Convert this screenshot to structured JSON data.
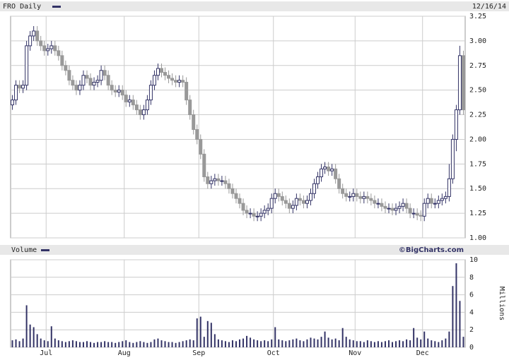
{
  "chart_data": [
    {
      "type": "candlestick",
      "title": "FRO Daily",
      "date": "12/16/14",
      "up_color": "#ffffff",
      "down_color": "#999999",
      "outline_color": "#333366",
      "open": [
        2.35,
        2.4,
        2.55,
        2.52,
        2.55,
        2.95,
        3.05,
        3.1,
        3.0,
        2.95,
        2.9,
        2.92,
        2.95,
        2.9,
        2.85,
        2.75,
        2.7,
        2.6,
        2.55,
        2.5,
        2.55,
        2.65,
        2.62,
        2.55,
        2.58,
        2.6,
        2.7,
        2.65,
        2.55,
        2.5,
        2.48,
        2.5,
        2.45,
        2.38,
        2.4,
        2.35,
        2.3,
        2.25,
        2.3,
        2.4,
        2.55,
        2.65,
        2.72,
        2.68,
        2.65,
        2.62,
        2.6,
        2.58,
        2.6,
        2.58,
        2.4,
        2.25,
        2.1,
        2.0,
        1.85,
        1.62,
        1.55,
        1.58,
        1.6,
        1.58,
        1.58,
        1.55,
        1.5,
        1.45,
        1.4,
        1.35,
        1.28,
        1.25,
        1.25,
        1.22,
        1.22,
        1.25,
        1.28,
        1.3,
        1.4,
        1.45,
        1.42,
        1.38,
        1.35,
        1.3,
        1.33,
        1.4,
        1.38,
        1.35,
        1.38,
        1.45,
        1.55,
        1.62,
        1.7,
        1.72,
        1.68,
        1.7,
        1.6,
        1.5,
        1.45,
        1.42,
        1.42,
        1.45,
        1.42,
        1.4,
        1.42,
        1.4,
        1.38,
        1.35,
        1.35,
        1.32,
        1.3,
        1.3,
        1.28,
        1.3,
        1.32,
        1.35,
        1.3,
        1.25,
        1.25,
        1.23,
        1.22,
        1.35,
        1.4,
        1.35,
        1.35,
        1.38,
        1.4,
        1.42,
        1.6,
        2.0,
        2.3,
        2.85
      ],
      "high": [
        2.45,
        2.6,
        2.6,
        2.6,
        3.0,
        3.1,
        3.15,
        3.15,
        3.05,
        3.0,
        2.97,
        3.0,
        3.0,
        2.95,
        2.9,
        2.8,
        2.75,
        2.65,
        2.6,
        2.6,
        2.7,
        2.7,
        2.67,
        2.63,
        2.65,
        2.75,
        2.75,
        2.7,
        2.6,
        2.55,
        2.55,
        2.55,
        2.5,
        2.45,
        2.45,
        2.4,
        2.35,
        2.35,
        2.45,
        2.6,
        2.7,
        2.77,
        2.77,
        2.73,
        2.7,
        2.67,
        2.65,
        2.65,
        2.65,
        2.63,
        2.45,
        2.3,
        2.15,
        2.05,
        1.9,
        1.67,
        1.63,
        1.65,
        1.65,
        1.63,
        1.63,
        1.6,
        1.55,
        1.5,
        1.45,
        1.4,
        1.33,
        1.3,
        1.3,
        1.27,
        1.3,
        1.33,
        1.35,
        1.45,
        1.5,
        1.5,
        1.47,
        1.43,
        1.4,
        1.38,
        1.45,
        1.45,
        1.43,
        1.43,
        1.5,
        1.6,
        1.67,
        1.75,
        1.77,
        1.77,
        1.75,
        1.75,
        1.65,
        1.55,
        1.5,
        1.47,
        1.5,
        1.5,
        1.47,
        1.47,
        1.47,
        1.45,
        1.43,
        1.4,
        1.4,
        1.37,
        1.35,
        1.35,
        1.35,
        1.37,
        1.4,
        1.4,
        1.35,
        1.3,
        1.3,
        1.28,
        1.4,
        1.45,
        1.45,
        1.4,
        1.43,
        1.45,
        1.47,
        1.75,
        2.05,
        2.35,
        2.95,
        2.9
      ],
      "low": [
        2.3,
        2.35,
        2.47,
        2.47,
        2.5,
        2.9,
        3.0,
        2.95,
        2.9,
        2.85,
        2.85,
        2.87,
        2.85,
        2.8,
        2.7,
        2.65,
        2.55,
        2.5,
        2.45,
        2.45,
        2.5,
        2.57,
        2.5,
        2.5,
        2.53,
        2.55,
        2.6,
        2.5,
        2.45,
        2.43,
        2.43,
        2.4,
        2.33,
        2.33,
        2.3,
        2.25,
        2.2,
        2.2,
        2.25,
        2.35,
        2.5,
        2.6,
        2.63,
        2.6,
        2.57,
        2.55,
        2.53,
        2.53,
        2.53,
        2.35,
        2.2,
        2.05,
        1.95,
        1.8,
        1.57,
        1.5,
        1.5,
        1.53,
        1.53,
        1.53,
        1.5,
        1.45,
        1.4,
        1.35,
        1.3,
        1.23,
        1.2,
        1.2,
        1.17,
        1.17,
        1.17,
        1.2,
        1.23,
        1.25,
        1.35,
        1.37,
        1.33,
        1.3,
        1.25,
        1.25,
        1.28,
        1.33,
        1.3,
        1.3,
        1.33,
        1.4,
        1.5,
        1.57,
        1.65,
        1.63,
        1.63,
        1.55,
        1.45,
        1.4,
        1.37,
        1.37,
        1.37,
        1.37,
        1.35,
        1.35,
        1.35,
        1.33,
        1.3,
        1.3,
        1.27,
        1.25,
        1.25,
        1.23,
        1.23,
        1.25,
        1.27,
        1.25,
        1.2,
        1.2,
        1.18,
        1.17,
        1.17,
        1.3,
        1.3,
        1.3,
        1.3,
        1.33,
        1.35,
        1.37,
        1.55,
        1.88,
        2.25,
        2.25
      ],
      "close": [
        2.4,
        2.55,
        2.52,
        2.55,
        2.95,
        3.05,
        3.1,
        3.0,
        2.95,
        2.9,
        2.92,
        2.95,
        2.9,
        2.85,
        2.75,
        2.7,
        2.6,
        2.55,
        2.5,
        2.55,
        2.65,
        2.62,
        2.55,
        2.58,
        2.6,
        2.7,
        2.65,
        2.55,
        2.5,
        2.48,
        2.5,
        2.45,
        2.38,
        2.4,
        2.35,
        2.3,
        2.25,
        2.3,
        2.4,
        2.55,
        2.65,
        2.72,
        2.68,
        2.65,
        2.62,
        2.6,
        2.58,
        2.6,
        2.58,
        2.4,
        2.25,
        2.1,
        2.0,
        1.85,
        1.62,
        1.55,
        1.58,
        1.6,
        1.58,
        1.58,
        1.55,
        1.5,
        1.45,
        1.4,
        1.35,
        1.28,
        1.25,
        1.25,
        1.22,
        1.22,
        1.25,
        1.28,
        1.3,
        1.4,
        1.45,
        1.42,
        1.38,
        1.35,
        1.3,
        1.33,
        1.4,
        1.38,
        1.35,
        1.38,
        1.45,
        1.55,
        1.62,
        1.7,
        1.72,
        1.68,
        1.7,
        1.6,
        1.5,
        1.45,
        1.42,
        1.42,
        1.45,
        1.42,
        1.4,
        1.42,
        1.4,
        1.38,
        1.35,
        1.35,
        1.32,
        1.3,
        1.3,
        1.28,
        1.3,
        1.32,
        1.35,
        1.3,
        1.25,
        1.25,
        1.23,
        1.22,
        1.35,
        1.4,
        1.35,
        1.35,
        1.38,
        1.4,
        1.42,
        1.6,
        2.0,
        2.3,
        2.85,
        2.3
      ],
      "ylim": [
        1.0,
        3.25
      ],
      "yticks": [
        {
          "value": 1,
          "label": "1.00"
        },
        {
          "value": 1.25,
          "label": "1.25"
        },
        {
          "value": 1.5,
          "label": "1.50"
        },
        {
          "value": 1.75,
          "label": "1.75"
        },
        {
          "value": 2,
          "label": "2.00"
        },
        {
          "value": 2.25,
          "label": "2.25"
        },
        {
          "value": 2.5,
          "label": "2.50"
        },
        {
          "value": 2.75,
          "label": "2.75"
        },
        {
          "value": 3,
          "label": "3.00"
        },
        {
          "value": 3.25,
          "label": "3.25"
        }
      ],
      "grid": true
    },
    {
      "type": "bar",
      "title": "Volume",
      "source": "©BigCharts.com",
      "ylabel": "Millions",
      "color": "#333366",
      "categories": [
        null,
        null,
        null,
        null,
        null,
        null,
        null,
        null,
        null,
        null,
        "Jul",
        null,
        null,
        null,
        null,
        null,
        null,
        null,
        null,
        null,
        null,
        null,
        null,
        null,
        null,
        null,
        null,
        null,
        null,
        null,
        null,
        null,
        "Aug",
        null,
        null,
        null,
        null,
        null,
        null,
        null,
        null,
        null,
        null,
        null,
        null,
        null,
        null,
        null,
        null,
        null,
        null,
        null,
        null,
        "Sep",
        null,
        null,
        null,
        null,
        null,
        null,
        null,
        null,
        null,
        null,
        null,
        null,
        null,
        null,
        null,
        null,
        null,
        null,
        null,
        null,
        "Oct",
        null,
        null,
        null,
        null,
        null,
        null,
        null,
        null,
        null,
        null,
        null,
        null,
        null,
        null,
        null,
        null,
        null,
        null,
        null,
        null,
        null,
        null,
        "Nov",
        null,
        null,
        null,
        null,
        null,
        null,
        null,
        null,
        null,
        null,
        null,
        null,
        null,
        null,
        null,
        null,
        null,
        null,
        "Dec",
        null,
        null,
        null,
        null,
        null,
        null,
        null,
        null,
        null,
        null,
        null
      ],
      "values": [
        0.8,
        0.9,
        0.7,
        1.0,
        4.8,
        2.6,
        2.3,
        1.5,
        1.0,
        0.8,
        0.7,
        2.4,
        1.0,
        0.8,
        0.7,
        0.6,
        0.7,
        0.8,
        0.7,
        0.6,
        0.6,
        0.7,
        0.6,
        0.5,
        0.6,
        0.6,
        0.7,
        0.6,
        0.6,
        0.5,
        0.6,
        0.7,
        0.8,
        0.6,
        0.5,
        0.6,
        0.7,
        0.6,
        0.5,
        0.6,
        0.9,
        1.0,
        0.8,
        0.7,
        0.6,
        0.6,
        0.5,
        0.6,
        0.7,
        0.8,
        0.9,
        0.8,
        3.3,
        3.5,
        1.2,
        3.0,
        2.8,
        1.5,
        0.9,
        0.8,
        0.7,
        0.6,
        0.8,
        0.7,
        0.9,
        1.0,
        1.3,
        1.1,
        0.9,
        0.8,
        0.7,
        0.8,
        0.7,
        0.9,
        2.3,
        0.9,
        0.8,
        0.7,
        0.8,
        0.9,
        1.0,
        0.8,
        0.7,
        0.9,
        1.1,
        1.0,
        0.9,
        1.2,
        1.8,
        1.1,
        0.9,
        1.0,
        0.8,
        2.2,
        1.2,
        0.9,
        0.8,
        0.7,
        0.7,
        0.6,
        0.8,
        0.7,
        0.6,
        0.7,
        0.6,
        0.7,
        0.8,
        0.6,
        0.7,
        0.8,
        0.7,
        0.9,
        0.8,
        2.2,
        1.1,
        0.9,
        1.8,
        1.0,
        0.8,
        0.7,
        0.6,
        0.8,
        1.0,
        1.8,
        7.0,
        9.6,
        5.3,
        1.2
      ],
      "ylim": [
        0,
        10
      ],
      "yticks": [
        0,
        2,
        4,
        6,
        8,
        10
      ],
      "grid": true
    }
  ]
}
